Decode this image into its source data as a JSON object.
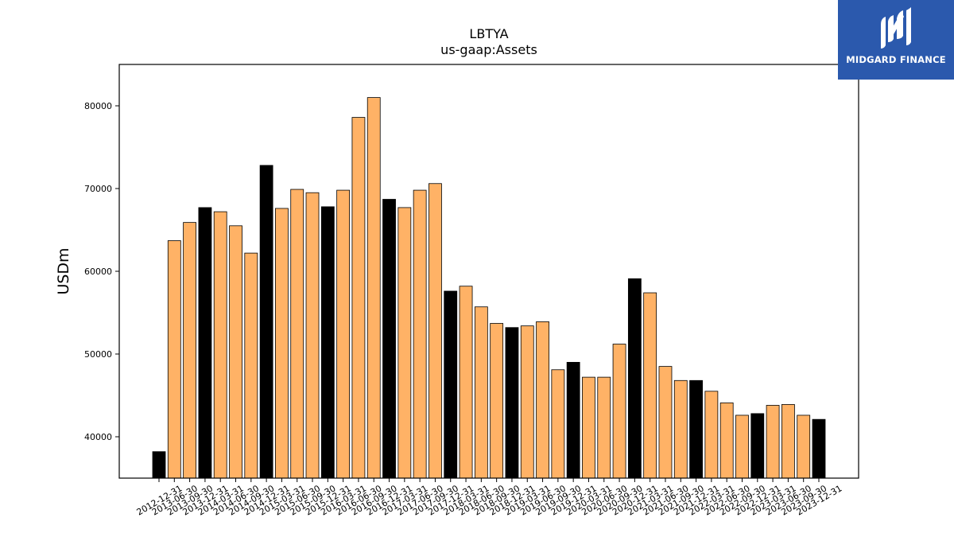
{
  "chart_data": {
    "type": "bar",
    "title": "LBTYA",
    "subtitle": "us-gaap:Assets",
    "xlabel": "",
    "ylabel": "USDm",
    "ylim": [
      35000,
      85000
    ],
    "yticks": [
      40000,
      50000,
      60000,
      70000,
      80000
    ],
    "grid": false,
    "legend": "none",
    "colors": {
      "highlight": "#000000",
      "normal": "#ffb266",
      "edge": "#000000"
    },
    "categories": [
      "2012-12-31",
      "2013-06-30",
      "2013-09-30",
      "2013-12-31",
      "2014-03-31",
      "2014-06-30",
      "2014-09-30",
      "2014-12-31",
      "2015-03-31",
      "2015-06-30",
      "2015-09-30",
      "2015-12-31",
      "2016-03-31",
      "2016-06-30",
      "2016-09-30",
      "2016-12-31",
      "2017-03-31",
      "2017-06-30",
      "2017-09-30",
      "2017-12-31",
      "2018-03-31",
      "2018-06-30",
      "2018-09-30",
      "2018-12-31",
      "2019-03-31",
      "2019-06-30",
      "2019-09-30",
      "2019-12-31",
      "2020-03-31",
      "2020-06-30",
      "2020-09-30",
      "2020-12-31",
      "2021-03-31",
      "2021-06-30",
      "2021-09-30",
      "2021-12-31",
      "2022-03-31",
      "2022-06-30",
      "2022-09-30",
      "2022-12-31",
      "2023-03-31",
      "2023-06-30",
      "2023-09-30",
      "2023-12-31"
    ],
    "values": [
      38200,
      63700,
      65900,
      67700,
      67200,
      65500,
      62200,
      72800,
      67600,
      69900,
      69500,
      67800,
      69800,
      78600,
      81000,
      68700,
      67700,
      69800,
      70600,
      57600,
      58200,
      55700,
      53700,
      53200,
      53400,
      53900,
      48100,
      49000,
      47200,
      47200,
      51200,
      59100,
      57400,
      48500,
      46800,
      46800,
      45500,
      44100,
      42600,
      42800,
      43800,
      43900,
      42600,
      42100
    ],
    "highlight": [
      true,
      false,
      false,
      true,
      false,
      false,
      false,
      true,
      false,
      false,
      false,
      true,
      false,
      false,
      false,
      true,
      false,
      false,
      false,
      true,
      false,
      false,
      false,
      true,
      false,
      false,
      false,
      true,
      false,
      false,
      false,
      true,
      false,
      false,
      false,
      true,
      false,
      false,
      false,
      true,
      false,
      false,
      false,
      true
    ]
  },
  "brand": {
    "name": "MIDGARD FINANCE",
    "logo_icon": "midgard-m-logo-icon"
  }
}
